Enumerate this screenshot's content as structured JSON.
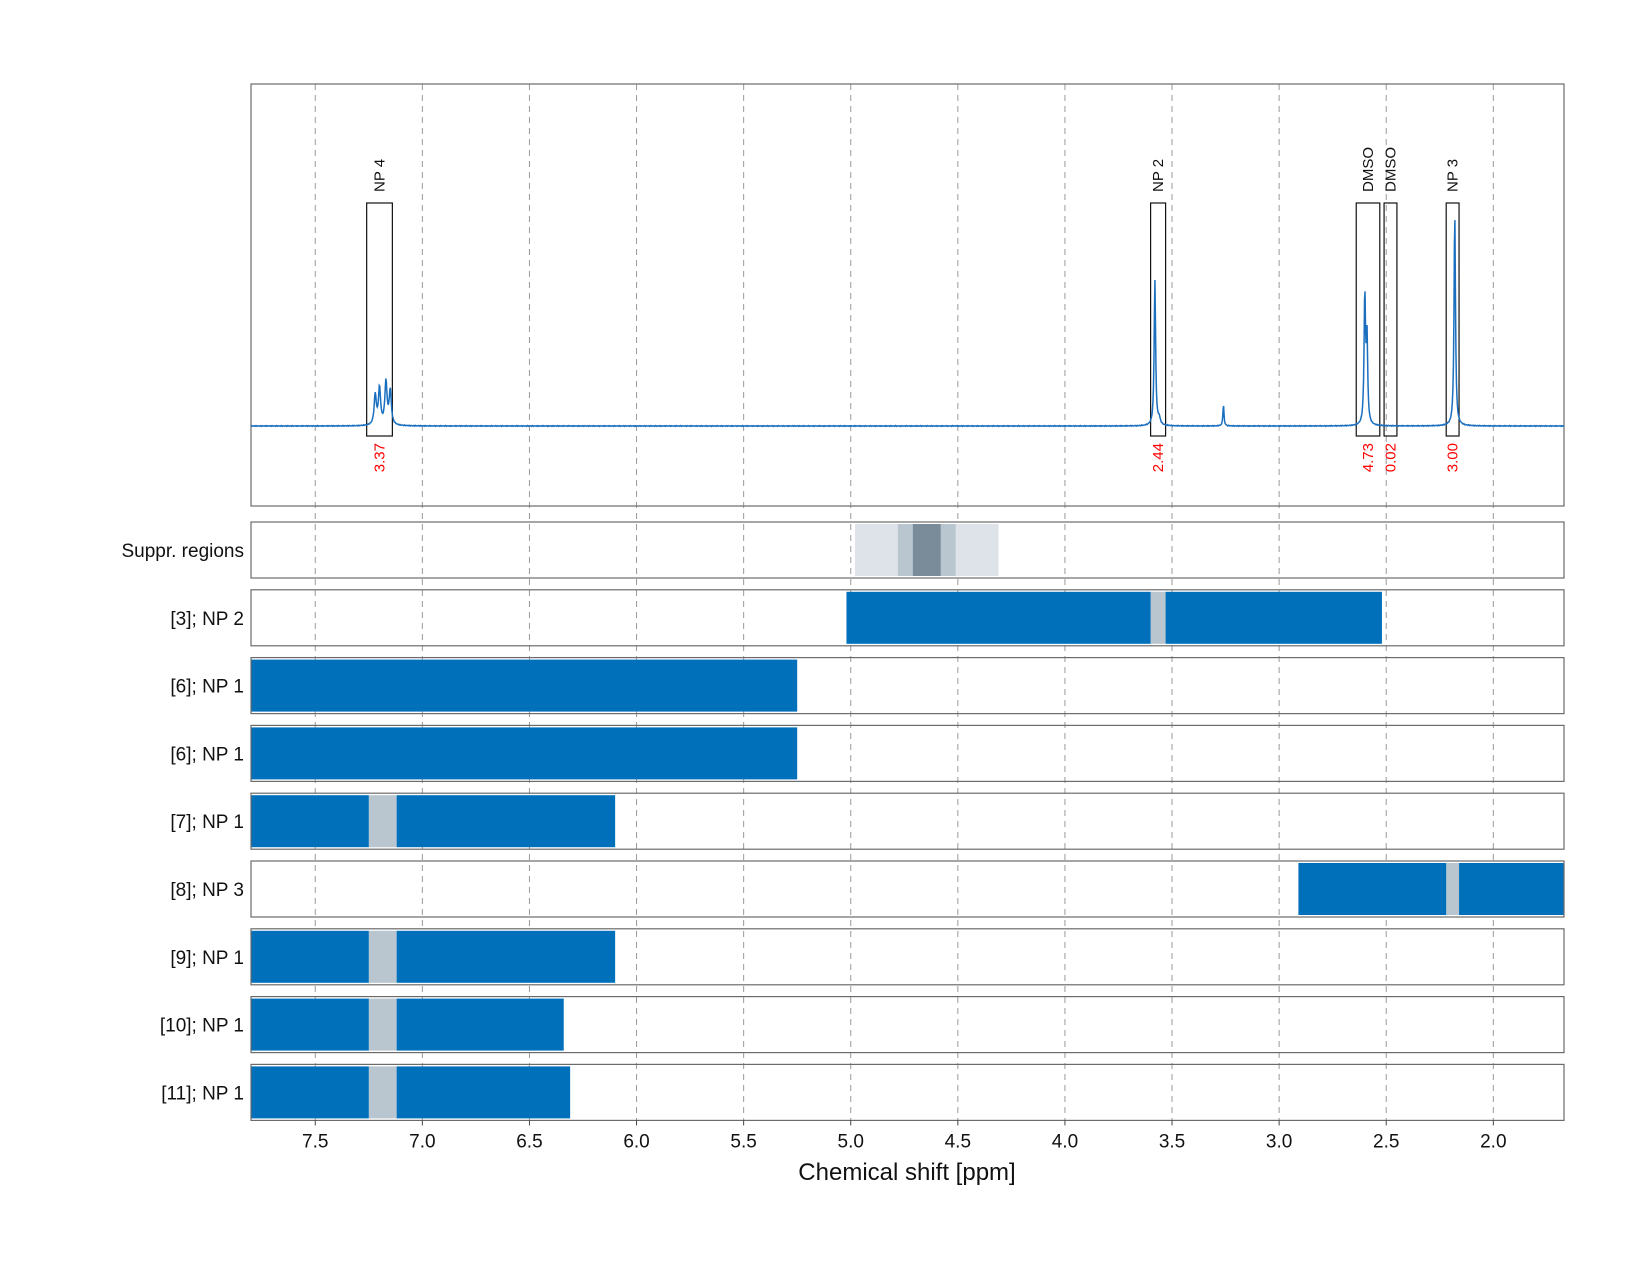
{
  "chart_data": {
    "type": "line",
    "xlabel": "Chemical shift [ppm]",
    "xlim": [
      7.8,
      1.67
    ],
    "xticks": [
      7.5,
      7.0,
      6.5,
      6.0,
      5.5,
      5.0,
      4.5,
      4.0,
      3.5,
      3.0,
      2.5,
      2.0
    ],
    "xtick_labels": [
      "7.5",
      "7.0",
      "6.5",
      "6.0",
      "5.5",
      "5.0",
      "4.5",
      "4.0",
      "3.5",
      "3.0",
      "2.5",
      "2.0"
    ],
    "grid": true,
    "spectrum": {
      "color": "#1a6fbf",
      "baseline": 0,
      "ylim": [
        -0.3,
        1.0
      ],
      "peaks": [
        {
          "ppm": 7.22,
          "height": 0.14,
          "width": 0.006
        },
        {
          "ppm": 7.2,
          "height": 0.17,
          "width": 0.006
        },
        {
          "ppm": 7.17,
          "height": 0.2,
          "width": 0.006
        },
        {
          "ppm": 7.15,
          "height": 0.16,
          "width": 0.006
        },
        {
          "ppm": 3.58,
          "height": 0.68,
          "width": 0.004
        },
        {
          "ppm": 3.56,
          "height": 0.03,
          "width": 0.006
        },
        {
          "ppm": 3.26,
          "height": 0.1,
          "width": 0.003
        },
        {
          "ppm": 2.6,
          "height": 0.6,
          "width": 0.004
        },
        {
          "ppm": 2.59,
          "height": 0.4,
          "width": 0.004
        },
        {
          "ppm": 2.18,
          "height": 0.99,
          "width": 0.004
        }
      ]
    },
    "annotations": [
      {
        "label": "NP 4",
        "ppm_range": [
          7.26,
          7.14
        ],
        "integral": "3.37"
      },
      {
        "label": "NP 2",
        "ppm_range": [
          3.6,
          3.53
        ],
        "integral": "2.44"
      },
      {
        "label": "DMSO",
        "ppm_range": [
          2.64,
          2.53
        ],
        "integral": "4.73"
      },
      {
        "label": "DMSO",
        "ppm_range": [
          2.51,
          2.45
        ],
        "integral": "0.02"
      },
      {
        "label": "NP 3",
        "ppm_range": [
          2.22,
          2.16
        ],
        "integral": "3.00"
      }
    ],
    "suppression_regions": {
      "label": "Suppr. regions",
      "bands": [
        {
          "ppm_range": [
            4.98,
            4.31
          ],
          "level": 1
        },
        {
          "ppm_range": [
            4.78,
            4.51
          ],
          "level": 2
        },
        {
          "ppm_range": [
            4.71,
            4.58
          ],
          "level": 3
        }
      ],
      "level_colors": [
        "#dde3e9",
        "#b9c6d0",
        "#7a8c99"
      ]
    },
    "reference_rows": [
      {
        "label": "[3]; NP 2",
        "segments": [
          [
            5.02,
            3.6
          ],
          [
            3.53,
            2.52
          ]
        ],
        "gap": [
          3.6,
          3.53
        ]
      },
      {
        "label": "[6]; NP 1",
        "segments": [
          [
            7.8,
            5.25
          ]
        ],
        "gap": null
      },
      {
        "label": "[6]; NP 1",
        "segments": [
          [
            7.8,
            5.25
          ]
        ],
        "gap": null
      },
      {
        "label": "[7]; NP 1",
        "segments": [
          [
            7.8,
            7.25
          ],
          [
            7.12,
            6.1
          ]
        ],
        "gap": [
          7.25,
          7.12
        ]
      },
      {
        "label": "[8]; NP 3",
        "segments": [
          [
            2.91,
            2.22
          ],
          [
            2.16,
            1.67
          ]
        ],
        "gap": [
          2.22,
          2.16
        ]
      },
      {
        "label": "[9]; NP 1",
        "segments": [
          [
            7.8,
            7.25
          ],
          [
            7.12,
            6.1
          ]
        ],
        "gap": [
          7.25,
          7.12
        ]
      },
      {
        "label": "[10]; NP 1",
        "segments": [
          [
            7.8,
            7.25
          ],
          [
            7.12,
            6.34
          ]
        ],
        "gap": [
          7.25,
          7.12
        ]
      },
      {
        "label": "[11]; NP 1",
        "segments": [
          [
            7.8,
            7.25
          ],
          [
            7.12,
            6.31
          ]
        ],
        "gap": [
          7.25,
          7.12
        ]
      }
    ],
    "bar_color": "#0070bb",
    "gap_color": "#b9c6d0"
  }
}
